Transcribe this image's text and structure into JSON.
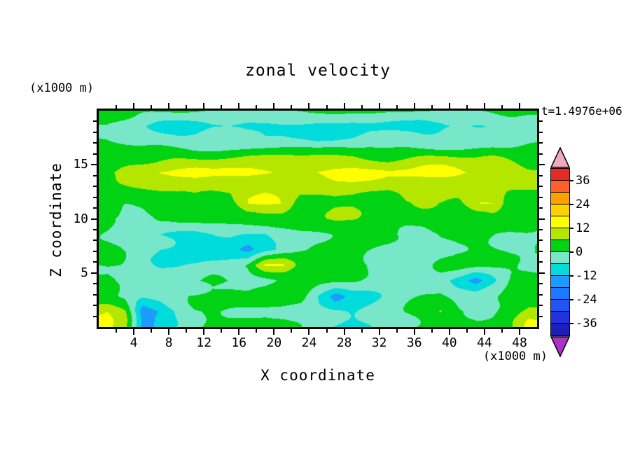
{
  "chart_data": {
    "type": "heatmap",
    "title": "zonal velocity",
    "timestamp": "t=1.4976e+06",
    "xlabel": "X coordinate",
    "ylabel": "Z coordinate",
    "x_unit": "(x1000 m)",
    "z_unit": "(x1000 m)",
    "x_range": [
      0,
      50
    ],
    "z_range": [
      0,
      20
    ],
    "x_major_ticks": [
      4,
      8,
      12,
      16,
      20,
      24,
      28,
      32,
      36,
      40,
      44,
      48
    ],
    "x_minor_step": 2,
    "z_major_ticks": [
      5,
      10,
      15
    ],
    "z_minor_step": 1,
    "contour_interval": 6,
    "level_min": -42,
    "level_max": 42,
    "colorbar": {
      "labels": [
        36,
        24,
        12,
        0,
        -12,
        -24,
        -36
      ],
      "tick_step": 12
    },
    "palette": {
      "below": "#aa32c8",
      "bands": [
        "#1e1eb9",
        "#2332e1",
        "#2355f5",
        "#1e78ff",
        "#1e9bff",
        "#00dcdc",
        "#78e6c8",
        "#00d214",
        "#b4e600",
        "#ffff00",
        "#ffd200",
        "#ffa000",
        "#ff5f28",
        "#e12d23"
      ],
      "above": "#f0aabe"
    },
    "x": [
      1,
      3,
      5,
      7,
      9,
      11,
      13,
      15,
      17,
      19,
      21,
      23,
      25,
      27,
      29,
      31,
      33,
      35,
      37,
      39,
      41,
      43,
      45,
      47,
      49
    ],
    "z": [
      20,
      18.6,
      17.1,
      15.7,
      14.3,
      12.9,
      11.4,
      10,
      8.6,
      7.1,
      5.7,
      4.3,
      2.9,
      1.4,
      0
    ],
    "values": [
      [
        1,
        1,
        0,
        0,
        0,
        0,
        0,
        1,
        1,
        1,
        0,
        0,
        0,
        0,
        0,
        1,
        1,
        1,
        0,
        0,
        0,
        1,
        1,
        1,
        1
      ],
      [
        0,
        -3,
        -5,
        -7,
        -8,
        -8,
        -7,
        -7,
        -8,
        -8,
        -7,
        -7,
        -8,
        -8,
        -8,
        -7,
        -7,
        -7,
        -8,
        -8,
        -7,
        -7,
        -6,
        -5,
        -4
      ],
      [
        1,
        -1,
        -3,
        -4,
        -5,
        -5,
        -4,
        -4,
        -5,
        -5,
        -4,
        -4,
        -5,
        -5,
        -5,
        -4,
        -4,
        -4,
        -5,
        -5,
        -4,
        -4,
        -3,
        -2,
        -1
      ],
      [
        3,
        4,
        5,
        6,
        6,
        5,
        5,
        6,
        7,
        7,
        6,
        5,
        6,
        7,
        7,
        6,
        5,
        6,
        7,
        7,
        6,
        5,
        5,
        4,
        4
      ],
      [
        6,
        8,
        10,
        12,
        13,
        13,
        12,
        13,
        14,
        14,
        13,
        12,
        13,
        14,
        14,
        13,
        12,
        13,
        14,
        14,
        13,
        12,
        11,
        10,
        8
      ],
      [
        4,
        5,
        6,
        7,
        8,
        9,
        8,
        7,
        8,
        9,
        8,
        7,
        8,
        9,
        9,
        8,
        7,
        8,
        9,
        9,
        8,
        7,
        6,
        6,
        5
      ],
      [
        2,
        1,
        2,
        3,
        4,
        4,
        3,
        3,
        12,
        13,
        12,
        3,
        4,
        6,
        6,
        4,
        3,
        4,
        5,
        5,
        4,
        12,
        12,
        3,
        2
      ],
      [
        2,
        -5,
        -4,
        2,
        4,
        4,
        3,
        3,
        4,
        5,
        4,
        3,
        4,
        5,
        5,
        4,
        3,
        4,
        5,
        5,
        4,
        3,
        3,
        2,
        2
      ],
      [
        1,
        0,
        -3,
        -6,
        -7,
        -8,
        -7,
        -7,
        -8,
        -7,
        -3,
        0,
        1,
        2,
        2,
        1,
        0,
        -2,
        -3,
        0,
        1,
        2,
        1,
        0,
        0
      ],
      [
        0,
        -1,
        -4,
        -7,
        -8,
        -9,
        -8,
        -8,
        -13,
        -8,
        -5,
        -2,
        0,
        1,
        1,
        0,
        -2,
        -4,
        -4,
        -1,
        1,
        1,
        0,
        -1,
        -1
      ],
      [
        1,
        0,
        -3,
        -5,
        -6,
        -6,
        -5,
        -4,
        0,
        13,
        13,
        4,
        2,
        3,
        3,
        0,
        -3,
        -4,
        -3,
        0,
        2,
        2,
        1,
        0,
        0
      ],
      [
        2,
        -2,
        -5,
        -4,
        -2,
        0,
        1,
        0,
        -2,
        -1,
        2,
        3,
        2,
        1,
        0,
        -3,
        -5,
        -4,
        -2,
        -2,
        -8,
        -14,
        -6,
        1,
        2
      ],
      [
        1,
        0,
        -3,
        -2,
        0,
        1,
        2,
        1,
        0,
        1,
        2,
        2,
        -6,
        -14,
        -8,
        -6,
        -4,
        -2,
        0,
        1,
        -3,
        -5,
        -2,
        2,
        3
      ],
      [
        12,
        6,
        -16,
        -12,
        -6,
        -2,
        0,
        0,
        1,
        1,
        0,
        -2,
        -4,
        -6,
        -8,
        -5,
        -2,
        0,
        2,
        6,
        2,
        0,
        0,
        2,
        9
      ],
      [
        14,
        8,
        -14,
        -10,
        -4,
        0,
        2,
        2,
        2,
        2,
        1,
        0,
        -2,
        -6,
        -8,
        -6,
        -2,
        0,
        2,
        4,
        2,
        1,
        1,
        4,
        13
      ]
    ]
  }
}
